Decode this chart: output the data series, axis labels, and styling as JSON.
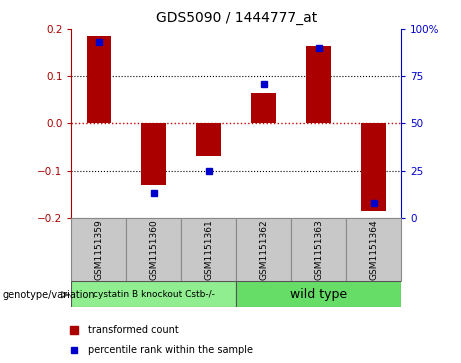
{
  "title": "GDS5090 / 1444777_at",
  "samples": [
    "GSM1151359",
    "GSM1151360",
    "GSM1151361",
    "GSM1151362",
    "GSM1151363",
    "GSM1151364"
  ],
  "red_values": [
    0.185,
    -0.13,
    -0.068,
    0.065,
    0.165,
    -0.185
  ],
  "blue_percentiles": [
    93,
    13,
    25,
    71,
    90,
    8
  ],
  "ylim": [
    -0.2,
    0.2
  ],
  "yticks_left": [
    -0.2,
    -0.1,
    0,
    0.1,
    0.2
  ],
  "yticks_right": [
    0,
    25,
    50,
    75,
    100
  ],
  "group1_label": "cystatin B knockout Cstb-/-",
  "group2_label": "wild type",
  "group1_color": "#90EE90",
  "group2_color": "#66DD66",
  "sample_bg_color": "#C8C8C8",
  "legend_red_label": "transformed count",
  "legend_blue_label": "percentile rank within the sample",
  "genotype_label": "genotype/variation",
  "bar_color": "#AA0000",
  "dot_color": "#0000CC",
  "zero_line_color": "#CC0000",
  "grid_color": "#000000",
  "title_fontsize": 10,
  "tick_fontsize": 7.5,
  "sample_fontsize": 6.5,
  "legend_fontsize": 7
}
